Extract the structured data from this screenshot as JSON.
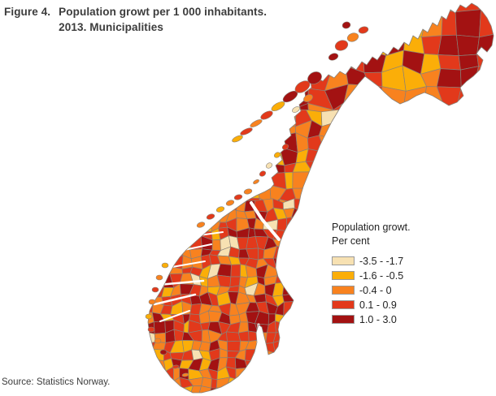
{
  "header": {
    "figure_label": "Figure 4.",
    "title_line1": "Population growt per 1 000 inhabitants.",
    "title_line2": "2013. Municipalities"
  },
  "legend": {
    "title_line1": "Population growt.",
    "title_line2": "Per cent",
    "items": [
      {
        "label": "-3.5 - -1.7",
        "color": "#F7E1B2"
      },
      {
        "label": "-1.6 - -0.5",
        "color": "#FBAE08"
      },
      {
        "label": "-0.4 - 0",
        "color": "#F8821F"
      },
      {
        "label": "0.1 - 0.9",
        "color": "#E2391B"
      },
      {
        "label": "1.0 - 3.0",
        "color": "#A31212"
      }
    ]
  },
  "map": {
    "border_color": "#8A8178",
    "sea_color": "#FFFFFF"
  },
  "source": "Source: Statistics Norway."
}
